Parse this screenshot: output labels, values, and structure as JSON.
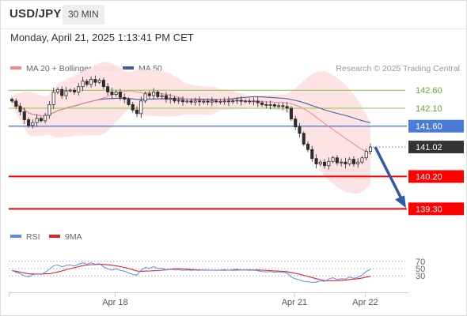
{
  "header": {
    "symbol": "USD/JPY",
    "interval": "30 MIN",
    "datetime": "Monday, April 21, 2025 1:13:41 PM CET"
  },
  "legend": {
    "ma20_bb": "MA 20 + Bollinger Bands",
    "ma50": "MA 50",
    "rsi": "RSI",
    "rsi_ma": "9MA",
    "copyright": "Research © 2025 Trading Central"
  },
  "colors": {
    "up": "#2d2d2d",
    "down": "#2d2d2d",
    "support": "#ff0000",
    "resistance_green": "#8cc63f",
    "pivot_blue": "#4a7bd8",
    "ma20": "#f08a8a",
    "ma50": "#3f5f9a",
    "bb_fill": "#fde0e0",
    "arrow": "#2e5aa6",
    "last_label": "#333333",
    "rsi_line": "#5b8def",
    "rsi_ma_line": "#e0242a"
  },
  "chart_data": {
    "type": "candlestick",
    "ylim": [
      139.0,
      143.0
    ],
    "x_ticks": [
      "Apr 18",
      "Apr 21",
      "Apr 22"
    ],
    "levels": [
      {
        "value": 142.6,
        "label": "142.60",
        "kind": "resistance",
        "style": "green-text"
      },
      {
        "value": 142.1,
        "label": "142.10",
        "kind": "resistance",
        "style": "green-text"
      },
      {
        "value": 141.6,
        "label": "141.60",
        "kind": "pivot",
        "style": "blue-box"
      },
      {
        "value": 141.02,
        "label": "141.02",
        "kind": "last",
        "style": "dark-box"
      },
      {
        "value": 140.2,
        "label": "140.20",
        "kind": "support",
        "style": "red-box"
      },
      {
        "value": 139.3,
        "label": "139.30",
        "kind": "support",
        "style": "red-box"
      }
    ],
    "closes": [
      142.3,
      142.15,
      142.0,
      141.78,
      141.62,
      141.7,
      141.82,
      141.75,
      141.9,
      142.2,
      142.55,
      142.62,
      142.45,
      142.58,
      142.6,
      142.55,
      142.7,
      142.85,
      142.76,
      142.9,
      142.82,
      142.88,
      142.7,
      142.55,
      142.48,
      142.55,
      142.4,
      142.35,
      142.2,
      142.05,
      141.95,
      142.3,
      142.5,
      142.45,
      142.55,
      142.42,
      142.45,
      142.35,
      142.38,
      142.3,
      142.32,
      142.28,
      142.3,
      142.27,
      142.3,
      142.28,
      142.29,
      142.27,
      142.3,
      142.28,
      142.29,
      142.3,
      142.28,
      142.3,
      142.32,
      142.29,
      142.3,
      142.28,
      142.3,
      142.25,
      142.2,
      142.18,
      142.2,
      142.16,
      142.17,
      142.15,
      142.1,
      141.8,
      141.58,
      141.4,
      141.1,
      140.95,
      140.7,
      140.55,
      140.6,
      140.5,
      140.62,
      140.72,
      140.58,
      140.6,
      140.55,
      140.68,
      140.55,
      140.6,
      140.72,
      140.9,
      141.02
    ],
    "rsi": {
      "ylim": [
        0,
        100
      ],
      "levels": [
        30,
        50,
        70
      ],
      "values": [
        45,
        40,
        36,
        30,
        27,
        33,
        36,
        34,
        40,
        48,
        58,
        60,
        55,
        59,
        60,
        57,
        62,
        66,
        62,
        66,
        62,
        64,
        55,
        49,
        46,
        50,
        45,
        43,
        38,
        34,
        32,
        46,
        53,
        51,
        55,
        50,
        51,
        47,
        49,
        46,
        47,
        45,
        46,
        45,
        46,
        45,
        46,
        45,
        46,
        45,
        46,
        47,
        45,
        47,
        48,
        46,
        47,
        45,
        46,
        44,
        42,
        41,
        42,
        40,
        41,
        40,
        38,
        27,
        22,
        19,
        15,
        14,
        12,
        13,
        16,
        15,
        21,
        25,
        20,
        22,
        21,
        27,
        23,
        26,
        32,
        42,
        48
      ]
    }
  }
}
